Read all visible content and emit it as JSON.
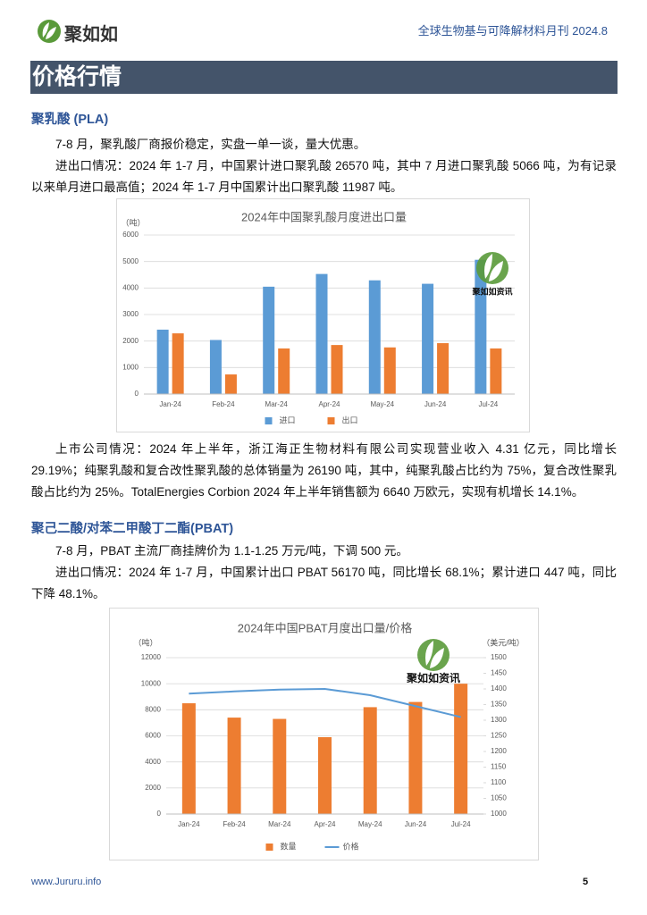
{
  "header": {
    "logo": "聚如如",
    "publication": "全球生物基与可降解材料月刊 2024.8"
  },
  "section_title": "价格行情",
  "pla": {
    "heading": "聚乳酸 (PLA)",
    "paragraphs": [
      "7-8 月，聚乳酸厂商报价稳定，实盘一单一谈，量大优惠。",
      "进出口情况：2024 年 1-7 月，中国累计进口聚乳酸 26570 吨，其中 7 月进口聚乳酸 5066 吨，为有记录以来单月进口最高值；2024 年 1-7 月中国累计出口聚乳酸 11987 吨。",
      "上市公司情况：2024 年上半年，浙江海正生物材料有限公司实现营业收入 4.31 亿元，同比增长 29.19%；纯聚乳酸和复合改性聚乳酸的总体销量为 26190 吨，其中，纯聚乳酸占比约为 75%，复合改性聚乳酸占比约为 25%。TotalEnergies Corbion 2024 年上半年销售额为 6640 万欧元，实现有机增长 14.1%。"
    ]
  },
  "pbat": {
    "heading": "聚己二酸/对苯二甲酸丁二酯(PBAT)",
    "paragraphs": [
      "7-8 月，PBAT 主流厂商挂牌价为 1.1-1.25 万元/吨，下调 500 元。",
      "进出口情况：2024 年 1-7 月，中国累计出口 PBAT 56170 吨，同比增长 68.1%；累计进口 447 吨，同比下降 48.1%。"
    ]
  },
  "chart_data": [
    {
      "type": "bar",
      "title": "2024年中国聚乳酸月度进出口量",
      "y_label": "（吨）",
      "watermark": "聚如如资讯",
      "categories": [
        "Jan-24",
        "Feb-24",
        "Mar-24",
        "Apr-24",
        "May-24",
        "Jun-24",
        "Jul-24"
      ],
      "series": [
        {
          "name": "进口",
          "color": "#5b9bd5",
          "values": [
            2430,
            2040,
            4050,
            4530,
            4290,
            4160,
            5066
          ]
        },
        {
          "name": "出口",
          "color": "#ed7d31",
          "values": [
            2290,
            740,
            1720,
            1850,
            1760,
            1920,
            1720
          ]
        }
      ],
      "ylim": [
        0,
        6000
      ],
      "yticks": [
        0,
        1000,
        2000,
        3000,
        4000,
        5000,
        6000
      ],
      "grid": true,
      "legend": "bottom"
    },
    {
      "type": "bar",
      "title": "2024年中国PBAT月度出口量/价格",
      "y_label": "（吨）",
      "y2_label": "（美元/吨）",
      "watermark": "聚如如资讯",
      "categories": [
        "Jan-24",
        "Feb-24",
        "Mar-24",
        "Apr-24",
        "May-24",
        "Jun-24",
        "Jul-24"
      ],
      "series": [
        {
          "name": "数量",
          "color": "#ed7d31",
          "values": [
            8500,
            7400,
            7300,
            5900,
            8200,
            8600,
            10000
          ]
        },
        {
          "name": "价格",
          "type": "line",
          "axis": "y2",
          "color": "#5b9bd5",
          "values": [
            1385,
            1392,
            1398,
            1400,
            1380,
            1345,
            1310
          ]
        }
      ],
      "ylim": [
        0,
        12000
      ],
      "yticks": [
        0,
        2000,
        4000,
        6000,
        8000,
        10000,
        12000
      ],
      "y2lim": [
        1000,
        1500
      ],
      "y2ticks": [
        1000,
        1050,
        1100,
        1150,
        1200,
        1250,
        1300,
        1350,
        1400,
        1450,
        1500
      ],
      "grid": true,
      "legend": "bottom"
    }
  ],
  "footer": {
    "url": "www.Jururu.info",
    "page": "5"
  }
}
